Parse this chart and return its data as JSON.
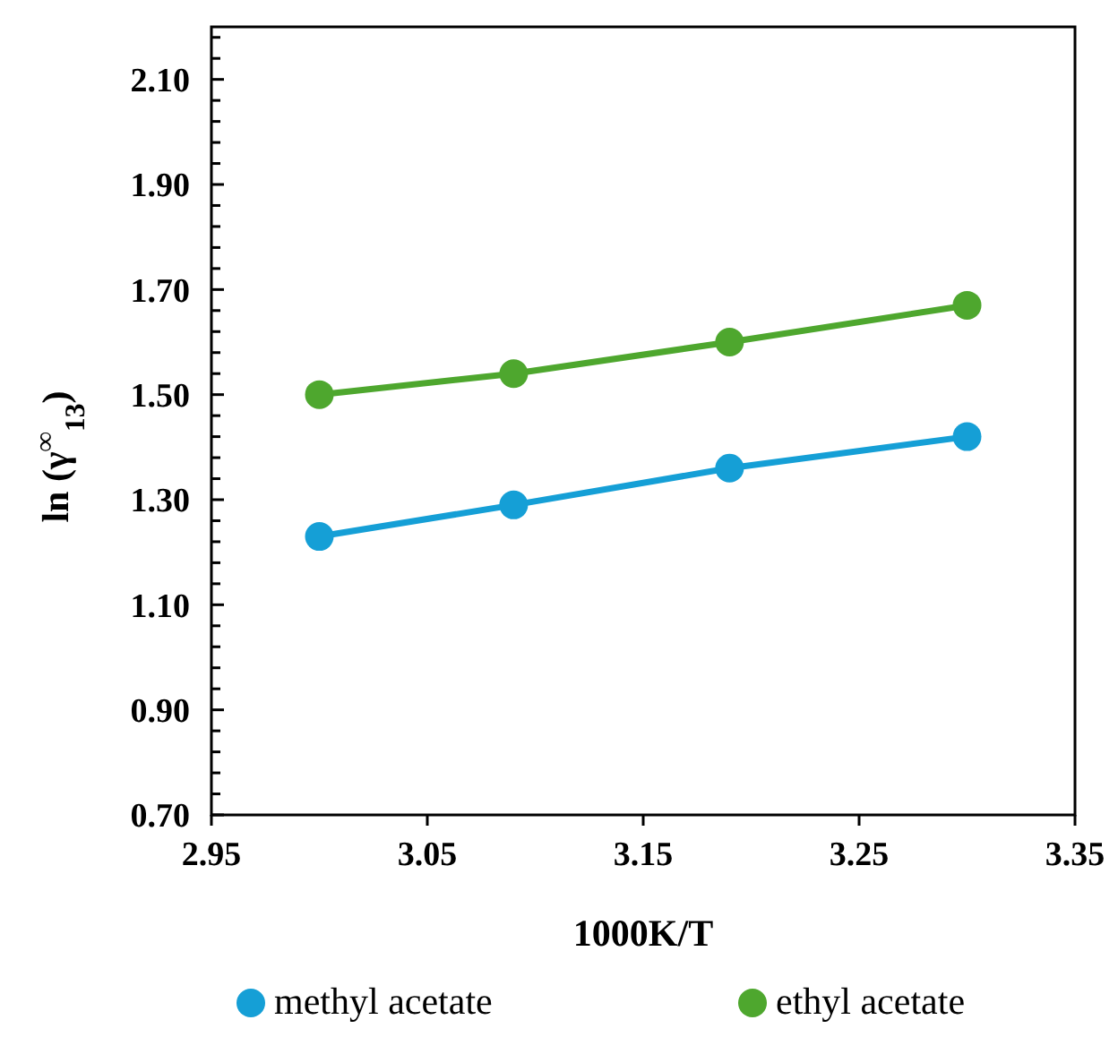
{
  "chart_data": {
    "type": "line",
    "xlabel": "1000K/T",
    "ylabel": "ln (γ$^{∞}$$_{13}$)",
    "xlim": [
      2.95,
      3.35
    ],
    "xticks": [
      {
        "value": 2.95,
        "label": "2.95"
      },
      {
        "value": 3.05,
        "label": "3.05"
      },
      {
        "value": 3.15,
        "label": "3.15"
      },
      {
        "value": 3.25,
        "label": "3.25"
      },
      {
        "value": 3.35,
        "label": "3.35"
      }
    ],
    "ylim": [
      0.7,
      2.2
    ],
    "yticks": [
      {
        "value": 0.7,
        "label": "0.70"
      },
      {
        "value": 0.74,
        "label": null
      },
      {
        "value": 0.78,
        "label": null
      },
      {
        "value": 0.82,
        "label": null
      },
      {
        "value": 0.86,
        "label": null
      },
      {
        "value": 0.9,
        "label": "0.90"
      },
      {
        "value": 0.94,
        "label": null
      },
      {
        "value": 0.98,
        "label": null
      },
      {
        "value": 1.02,
        "label": null
      },
      {
        "value": 1.06,
        "label": null
      },
      {
        "value": 1.1,
        "label": "1.10"
      },
      {
        "value": 1.14,
        "label": null
      },
      {
        "value": 1.18,
        "label": null
      },
      {
        "value": 1.22,
        "label": null
      },
      {
        "value": 1.26,
        "label": null
      },
      {
        "value": 1.3,
        "label": "1.30"
      },
      {
        "value": 1.34,
        "label": null
      },
      {
        "value": 1.38,
        "label": null
      },
      {
        "value": 1.42,
        "label": null
      },
      {
        "value": 1.46,
        "label": null
      },
      {
        "value": 1.5,
        "label": "1.50"
      },
      {
        "value": 1.54,
        "label": null
      },
      {
        "value": 1.58,
        "label": null
      },
      {
        "value": 1.62,
        "label": null
      },
      {
        "value": 1.66,
        "label": null
      },
      {
        "value": 1.7,
        "label": "1.70"
      },
      {
        "value": 1.74,
        "label": null
      },
      {
        "value": 1.78,
        "label": null
      },
      {
        "value": 1.82,
        "label": null
      },
      {
        "value": 1.86,
        "label": null
      },
      {
        "value": 1.9,
        "label": "1.90"
      },
      {
        "value": 1.94,
        "label": null
      },
      {
        "value": 1.98,
        "label": null
      },
      {
        "value": 2.02,
        "label": null
      },
      {
        "value": 2.06,
        "label": null
      },
      {
        "value": 2.1,
        "label": "2.10"
      },
      {
        "value": 2.14,
        "label": null
      },
      {
        "value": 2.18,
        "label": null
      }
    ],
    "x": [
      3.0,
      3.09,
      3.19,
      3.3
    ],
    "series": [
      {
        "name": "methyl acetate",
        "color": "#159fd6",
        "values": [
          1.23,
          1.29,
          1.36,
          1.42
        ]
      },
      {
        "name": "ethyl acetate",
        "color": "#4ea72e",
        "values": [
          1.5,
          1.54,
          1.6,
          1.67
        ]
      }
    ],
    "marker": "circle",
    "line_style": "solid",
    "legend": "bottom",
    "grid": false
  }
}
